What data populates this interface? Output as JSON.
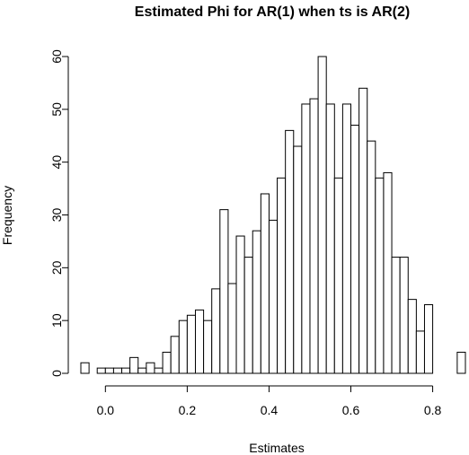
{
  "chart_data": {
    "type": "bar",
    "title": "Estimated Phi for AR(1) when ts is AR(2)",
    "xlabel": "Estimates",
    "ylabel": "Frequency",
    "bin_width": 0.02,
    "bin_start": -0.06,
    "xlim": [
      -0.06,
      0.88
    ],
    "ylim": [
      0,
      60
    ],
    "x_ticks": [
      0.0,
      0.2,
      0.4,
      0.6,
      0.8
    ],
    "x_tick_labels": [
      "0.0",
      "0.2",
      "0.4",
      "0.6",
      "0.8"
    ],
    "y_ticks": [
      0,
      10,
      20,
      30,
      40,
      50,
      60
    ],
    "y_tick_labels": [
      "0",
      "10",
      "20",
      "30",
      "40",
      "50",
      "60"
    ],
    "values": [
      2,
      0,
      1,
      1,
      1,
      1,
      3,
      1,
      2,
      1,
      4,
      7,
      10,
      11,
      12,
      10,
      16,
      31,
      17,
      26,
      22,
      27,
      34,
      29,
      37,
      46,
      43,
      51,
      52,
      60,
      51,
      37,
      51,
      47,
      54,
      44,
      37,
      38,
      22,
      22,
      14,
      8,
      13,
      0,
      0,
      0,
      4
    ],
    "grid": false,
    "legend": "none"
  }
}
